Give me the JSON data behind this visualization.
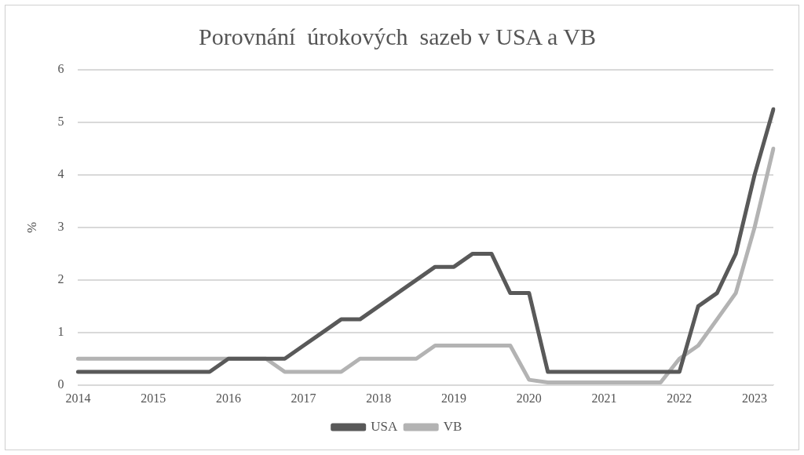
{
  "chart_data": {
    "type": "line",
    "title": "Porovnání  úrokových  sazeb v USA a VB",
    "ylabel": "%",
    "categories": [
      "2014",
      null,
      null,
      null,
      "2015",
      null,
      null,
      null,
      "2016",
      null,
      null,
      null,
      "2017",
      null,
      null,
      null,
      "2018",
      null,
      null,
      null,
      "2019",
      null,
      null,
      null,
      "2020",
      null,
      null,
      null,
      "2021",
      null,
      null,
      null,
      "2022",
      null,
      null,
      null,
      "2023",
      null
    ],
    "series": [
      {
        "name": "USA",
        "color": "#595959",
        "values": [
          0.25,
          0.25,
          0.25,
          0.25,
          0.25,
          0.25,
          0.25,
          0.25,
          0.5,
          0.5,
          0.5,
          0.5,
          0.75,
          1.0,
          1.25,
          1.25,
          1.5,
          1.75,
          2.0,
          2.25,
          2.25,
          2.5,
          2.5,
          1.75,
          1.75,
          0.25,
          0.25,
          0.25,
          0.25,
          0.25,
          0.25,
          0.25,
          0.25,
          1.5,
          1.75,
          2.5,
          4.0,
          5.25
        ]
      },
      {
        "name": "VB",
        "color": "#b3b3b3",
        "values": [
          0.5,
          0.5,
          0.5,
          0.5,
          0.5,
          0.5,
          0.5,
          0.5,
          0.5,
          0.5,
          0.5,
          0.25,
          0.25,
          0.25,
          0.25,
          0.5,
          0.5,
          0.5,
          0.5,
          0.75,
          0.75,
          0.75,
          0.75,
          0.75,
          0.1,
          0.05,
          0.05,
          0.05,
          0.05,
          0.05,
          0.05,
          0.05,
          0.5,
          0.75,
          1.25,
          1.75,
          3.0,
          4.5
        ]
      }
    ],
    "ylim": [
      0,
      6
    ],
    "yticks": [
      0,
      1,
      2,
      3,
      4,
      5,
      6
    ],
    "grid": "y",
    "legend": "bottom",
    "marker": "none",
    "line_style": "solid"
  }
}
